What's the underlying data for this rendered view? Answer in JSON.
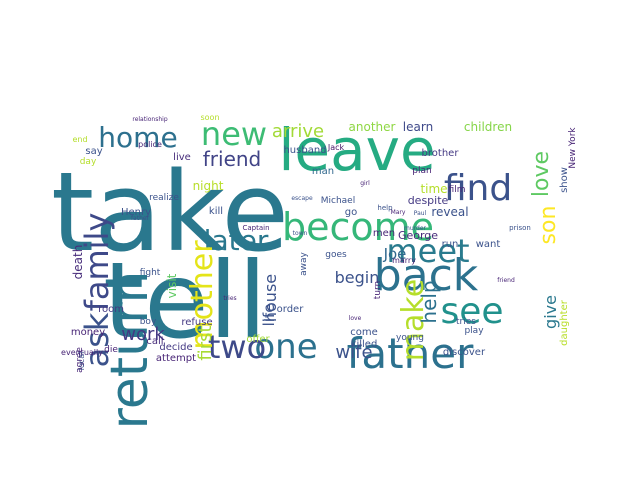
{
  "words": [
    {
      "text": "take",
      "color": "#2a788e"
    },
    {
      "text": "tell",
      "color": "#2a788e"
    },
    {
      "text": "leave",
      "color": "#25ab82"
    },
    {
      "text": "return",
      "color": "#2a788e"
    },
    {
      "text": "father",
      "color": "#2c718e"
    },
    {
      "text": "become",
      "color": "#35b779"
    },
    {
      "text": "back",
      "color": "#2c728e"
    },
    {
      "text": "ask",
      "color": "#3b528b"
    },
    {
      "text": "family",
      "color": "#3e4989"
    },
    {
      "text": "see",
      "color": "#21918c"
    },
    {
      "text": "meet",
      "color": "#297b8e"
    },
    {
      "text": "find",
      "color": "#3b528b"
    },
    {
      "text": "home",
      "color": "#2d708e"
    },
    {
      "text": "new",
      "color": "#3dbc74"
    },
    {
      "text": "one",
      "color": "#2c718e"
    },
    {
      "text": "two",
      "color": "#3e4a89"
    },
    {
      "text": "make",
      "color": "#b5de2b"
    },
    {
      "text": "later",
      "color": "#2a788e"
    },
    {
      "text": "mother",
      "color": "#e4e419"
    },
    {
      "text": "love",
      "color": "#5ec962"
    },
    {
      "text": "son",
      "color": "#fde725"
    },
    {
      "text": "help",
      "color": "#2c718e"
    },
    {
      "text": "friend",
      "color": "#414487"
    },
    {
      "text": "arrive",
      "color": "#a2da37"
    },
    {
      "text": "wife",
      "color": "#3b528b"
    },
    {
      "text": "work",
      "color": "#443983"
    },
    {
      "text": "first",
      "color": "#a8db34"
    },
    {
      "text": "house",
      "color": "#3b528b"
    },
    {
      "text": "begin",
      "color": "#3b528b"
    },
    {
      "text": "give",
      "color": "#2a788e"
    },
    {
      "text": "Joe",
      "color": "#31688e"
    },
    {
      "text": "life",
      "color": "#3b528b"
    },
    {
      "text": "learn",
      "color": "#3e4989"
    },
    {
      "text": "children",
      "color": "#86d549"
    },
    {
      "text": "another",
      "color": "#8fd744"
    },
    {
      "text": "night",
      "color": "#b8de29"
    },
    {
      "text": "visit",
      "color": "#5ec962"
    },
    {
      "text": "death",
      "color": "#472d7b"
    },
    {
      "text": "kill",
      "color": "#3b528b"
    },
    {
      "text": "reveal",
      "color": "#3b528b"
    },
    {
      "text": "time",
      "color": "#b5de2b"
    },
    {
      "text": "George",
      "color": "#472d7b"
    },
    {
      "text": "despite",
      "color": "#443983"
    },
    {
      "text": "plan",
      "color": "#482576"
    },
    {
      "text": "go",
      "color": "#3b528b"
    },
    {
      "text": "man",
      "color": "#31688e"
    },
    {
      "text": "Jack",
      "color": "#471365"
    },
    {
      "text": "Henry",
      "color": "#3b528b"
    },
    {
      "text": "say",
      "color": "#3b528b"
    },
    {
      "text": "live",
      "color": "#472d7b"
    },
    {
      "text": "refuse",
      "color": "#443983"
    },
    {
      "text": "money",
      "color": "#482576"
    },
    {
      "text": "call",
      "color": "#472d7b"
    },
    {
      "text": "attempt",
      "color": "#482576"
    },
    {
      "text": "decide",
      "color": "#443983"
    },
    {
      "text": "agree",
      "color": "#482576"
    },
    {
      "text": "offer",
      "color": "#a2da37"
    },
    {
      "text": "order",
      "color": "#3b528b"
    },
    {
      "text": "come",
      "color": "#3b528b"
    },
    {
      "text": "killed",
      "color": "#3b528b"
    },
    {
      "text": "young",
      "color": "#3b528b"
    },
    {
      "text": "discover",
      "color": "#3b528b"
    },
    {
      "text": "daughter",
      "color": "#b8de29"
    },
    {
      "text": "show",
      "color": "#3b528b"
    },
    {
      "text": "New York",
      "color": "#482576"
    },
    {
      "text": "want",
      "color": "#3b528b"
    },
    {
      "text": "run",
      "color": "#3b528b"
    },
    {
      "text": "men",
      "color": "#482576"
    },
    {
      "text": "room",
      "color": "#443983"
    },
    {
      "text": "boy",
      "color": "#3b528b"
    },
    {
      "text": "fight",
      "color": "#3b528b"
    },
    {
      "text": "die",
      "color": "#482576"
    },
    {
      "text": "husband",
      "color": "#3b528b"
    },
    {
      "text": "brother",
      "color": "#443983"
    },
    {
      "text": "film",
      "color": "#482576"
    },
    {
      "text": "eventually",
      "color": "#482576"
    },
    {
      "text": "local",
      "color": "#3b528b"
    },
    {
      "text": "police",
      "color": "#482576"
    },
    {
      "text": "realize",
      "color": "#3b528b"
    },
    {
      "text": "marry",
      "color": "#482576"
    },
    {
      "text": "play",
      "color": "#3b528b"
    },
    {
      "text": "tries",
      "color": "#3b528b"
    },
    {
      "text": "turn",
      "color": "#482576"
    },
    {
      "text": "goes",
      "color": "#3b528b"
    },
    {
      "text": "away",
      "color": "#3b528b"
    },
    {
      "text": "day",
      "color": "#b5de2b"
    },
    {
      "text": "Michael",
      "color": "#3b528b"
    },
    {
      "text": "soon",
      "color": "#b5de2b"
    },
    {
      "text": "end",
      "color": "#b5de2b"
    },
    {
      "text": "Captain",
      "color": "#482576"
    },
    {
      "text": "prison",
      "color": "#3b528b"
    },
    {
      "text": "help",
      "color": "#3b528b"
    },
    {
      "text": "tries",
      "color": "#482576"
    },
    {
      "text": "escape",
      "color": "#3b528b"
    },
    {
      "text": "friend",
      "color": "#482576"
    },
    {
      "text": "father",
      "color": "#3b528b"
    },
    {
      "text": "girl",
      "color": "#482576"
    },
    {
      "text": "town",
      "color": "#3b528b"
    },
    {
      "text": "Mary",
      "color": "#482576"
    },
    {
      "text": "Paul",
      "color": "#3b528b"
    },
    {
      "text": "love",
      "color": "#482576"
    },
    {
      "text": "murder",
      "color": "#3b528b"
    },
    {
      "text": "relationship",
      "color": "#482576"
    }
  ]
}
